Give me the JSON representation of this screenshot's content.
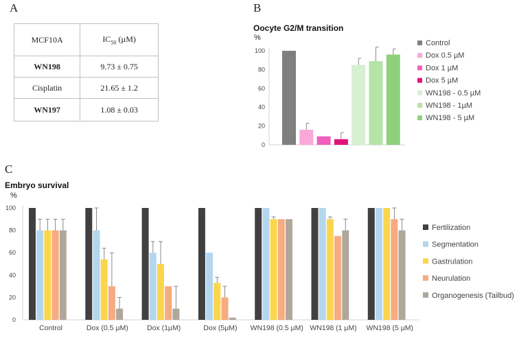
{
  "panel_a": {
    "letter": "A",
    "table": {
      "header": {
        "cell_line": "MCF10A",
        "ic50_prefix": "IC",
        "ic50_sub": "50",
        "ic50_unit": " (µM)"
      },
      "rows": [
        {
          "name": "WN198",
          "value": "9.73 ± 0.75",
          "bold": true
        },
        {
          "name": "Cisplatin",
          "value": "21.65 ± 1.2",
          "bold": false
        },
        {
          "name": "WN197",
          "value": "1.08 ± 0.03",
          "bold": true
        }
      ]
    }
  },
  "panel_b": {
    "letter": "B"
  },
  "panel_c": {
    "letter": "C"
  },
  "chart_data": [
    {
      "type": "bar",
      "title": "Oocyte G2/M transition",
      "ylabel": "%",
      "ylim": [
        0,
        100
      ],
      "yticks": [
        0,
        20,
        40,
        60,
        80,
        100
      ],
      "grid": false,
      "legend_position": "right",
      "series": [
        {
          "name": "Control",
          "value": 100,
          "error": 0,
          "color": "#7f7f7f"
        },
        {
          "name": "Dox 0.5 µM",
          "value": 16,
          "error": 7,
          "color": "#f9a8d9"
        },
        {
          "name": "Dox 1 µM",
          "value": 9,
          "error": 0,
          "color": "#f060bc"
        },
        {
          "name": "Dox 5 µM",
          "value": 6,
          "error": 7,
          "color": "#e0147c"
        },
        {
          "name": "WN198 - 0.5 µM",
          "value": 85,
          "error": 7,
          "color": "#d6f0d1"
        },
        {
          "name": "WN198 - 1µM",
          "value": 89,
          "error": 15,
          "color": "#b6e3a8"
        },
        {
          "name": "WN198 - 5 µM",
          "value": 96,
          "error": 6,
          "color": "#8ed07c"
        }
      ]
    },
    {
      "type": "bar",
      "title": "Embryo survival",
      "ylabel": "%",
      "ylim": [
        0,
        100
      ],
      "yticks": [
        0,
        20,
        40,
        60,
        80,
        100
      ],
      "grid": false,
      "legend_position": "right",
      "categories": [
        "Control",
        "Dox  (0.5 µM)",
        "Dox  (1µM)",
        "Dox  (5µM)",
        "WN198  (0.5 µM)",
        "WN198  (1 µM)",
        "WN198   (5 µM)"
      ],
      "series": [
        {
          "name": "Fertilization",
          "color": "#404040",
          "values": [
            100,
            100,
            100,
            100,
            100,
            100,
            100
          ],
          "errors": [
            0,
            0,
            0,
            0,
            0,
            0,
            0
          ]
        },
        {
          "name": "Segmentation",
          "color": "#b4d6ee",
          "values": [
            80,
            80,
            60,
            60,
            100,
            100,
            100
          ],
          "errors": [
            10,
            20,
            10,
            0,
            0,
            0,
            0
          ]
        },
        {
          "name": "Gastrulation",
          "color": "#fbd64d",
          "values": [
            80,
            54,
            50,
            33,
            90,
            90,
            100
          ],
          "errors": [
            10,
            10,
            20,
            5,
            2,
            2,
            0
          ]
        },
        {
          "name": "Neurulation",
          "color": "#f6ab80",
          "values": [
            80,
            30,
            30,
            20,
            90,
            75,
            90
          ],
          "errors": [
            10,
            30,
            0,
            10,
            0,
            0,
            10
          ]
        },
        {
          "name": "Organogenesis (Tailbud)",
          "color": "#b0a79b",
          "values": [
            80,
            10,
            10,
            2,
            90,
            80,
            80
          ],
          "errors": [
            10,
            10,
            20,
            0,
            0,
            10,
            10
          ]
        }
      ]
    }
  ]
}
